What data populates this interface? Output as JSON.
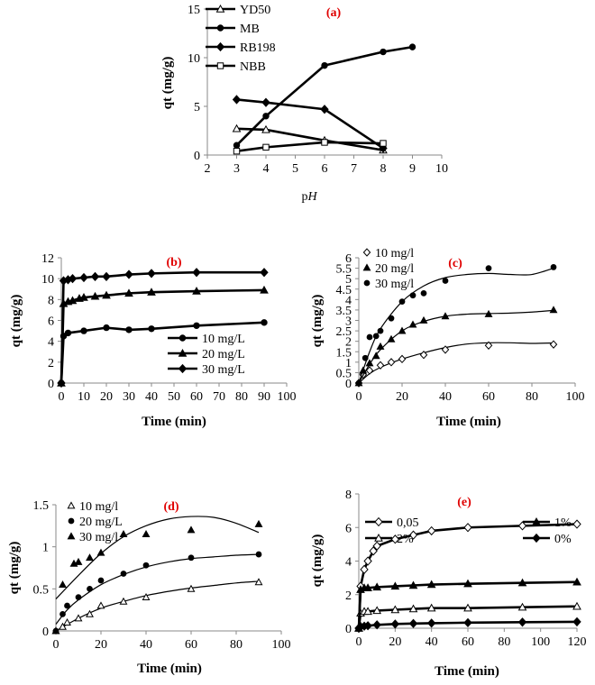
{
  "chart_data": [
    {
      "id": "a",
      "type": "line",
      "title": "(a)",
      "xlabel": "pH",
      "ylabel": "qt  (mg/g)",
      "xlim": [
        2,
        10
      ],
      "ylim": [
        0,
        15
      ],
      "xticks": [
        2,
        3,
        4,
        5,
        6,
        7,
        8,
        9,
        10
      ],
      "yticks": [
        0,
        5,
        10,
        15
      ],
      "legend_position": "top-left",
      "series": [
        {
          "name": "YD50",
          "marker": "triangle-open",
          "line": "thick",
          "x": [
            3,
            4,
            6,
            8
          ],
          "y": [
            2.7,
            2.6,
            1.5,
            0.5
          ]
        },
        {
          "name": "MB",
          "marker": "circle",
          "line": "thick",
          "x": [
            3,
            4,
            6,
            8,
            9
          ],
          "y": [
            1.0,
            4.0,
            9.2,
            10.6,
            11.1
          ]
        },
        {
          "name": "RB198",
          "marker": "diamond",
          "line": "thick",
          "x": [
            3,
            4,
            6,
            8
          ],
          "y": [
            5.7,
            5.4,
            4.7,
            0.7
          ]
        },
        {
          "name": "NBB",
          "marker": "square-open",
          "line": "thick",
          "x": [
            3,
            4,
            6,
            8
          ],
          "y": [
            0.4,
            0.8,
            1.3,
            1.2
          ]
        }
      ]
    },
    {
      "id": "b",
      "type": "line",
      "title": "(b)",
      "xlabel": "Time (min)",
      "ylabel": "qt (mg/g)",
      "xlim": [
        0,
        100
      ],
      "ylim": [
        0,
        12
      ],
      "xticks": [
        0,
        10,
        20,
        30,
        40,
        50,
        60,
        70,
        80,
        90,
        100
      ],
      "yticks": [
        0,
        2,
        4,
        6,
        8,
        10,
        12
      ],
      "legend_position": "bottom-right",
      "series": [
        {
          "name": "10 mg/L",
          "marker": "circle",
          "line": "thick",
          "x": [
            0,
            1,
            3,
            10,
            20,
            30,
            40,
            60,
            90
          ],
          "y": [
            0,
            4.5,
            4.8,
            5.0,
            5.3,
            5.1,
            5.2,
            5.5,
            5.8
          ]
        },
        {
          "name": "20 mg/L",
          "marker": "triangle",
          "line": "thick",
          "x": [
            0,
            1,
            3,
            5,
            8,
            10,
            15,
            20,
            30,
            40,
            60,
            90
          ],
          "y": [
            0,
            7.6,
            7.8,
            7.9,
            8.1,
            8.2,
            8.3,
            8.4,
            8.6,
            8.7,
            8.8,
            8.9
          ]
        },
        {
          "name": "30 mg/L",
          "marker": "diamond",
          "line": "thick",
          "x": [
            0,
            1,
            3,
            5,
            10,
            15,
            20,
            30,
            40,
            60,
            90
          ],
          "y": [
            0,
            9.8,
            9.9,
            10.0,
            10.1,
            10.2,
            10.2,
            10.4,
            10.5,
            10.6,
            10.6
          ]
        }
      ]
    },
    {
      "id": "c",
      "type": "scatter",
      "title": "(c)",
      "xlabel": "Time (min)",
      "ylabel": "qt  (mg/g)",
      "xlim": [
        0,
        100
      ],
      "ylim": [
        0,
        6
      ],
      "xticks": [
        0,
        20,
        40,
        60,
        80,
        100
      ],
      "yticks": [
        0,
        0.5,
        1,
        1.5,
        2,
        2.5,
        3,
        3.5,
        4,
        4.5,
        5,
        5.5,
        6
      ],
      "legend_position": "top-left",
      "series": [
        {
          "name": "10 mg/l",
          "marker": "diamond-open",
          "x": [
            0,
            2,
            5,
            10,
            15,
            20,
            30,
            40,
            60,
            90
          ],
          "y": [
            0,
            0.4,
            0.6,
            0.85,
            1.0,
            1.15,
            1.35,
            1.6,
            1.8,
            1.85
          ],
          "fit_x": [
            0,
            5,
            10,
            20,
            30,
            40,
            50,
            60,
            70,
            80,
            90
          ],
          "fit_y": [
            0,
            0.45,
            0.75,
            1.15,
            1.45,
            1.7,
            1.87,
            1.93,
            1.93,
            1.9,
            1.92
          ]
        },
        {
          "name": "20 mg/l",
          "marker": "triangle",
          "x": [
            0,
            2,
            5,
            8,
            10,
            15,
            20,
            25,
            30,
            40,
            60,
            90
          ],
          "y": [
            0,
            0.6,
            0.95,
            1.3,
            1.75,
            2.1,
            2.5,
            2.8,
            3.0,
            3.2,
            3.3,
            3.5
          ],
          "fit_x": [
            0,
            5,
            10,
            20,
            30,
            40,
            50,
            60,
            70,
            80,
            90
          ],
          "fit_y": [
            0,
            0.9,
            1.6,
            2.5,
            2.95,
            3.2,
            3.3,
            3.33,
            3.35,
            3.4,
            3.48
          ]
        },
        {
          "name": "30 mg/l",
          "marker": "circle",
          "x": [
            0,
            3,
            5,
            8,
            10,
            15,
            20,
            25,
            30,
            40,
            60,
            90
          ],
          "y": [
            0,
            1.2,
            2.2,
            2.25,
            2.5,
            3.1,
            3.9,
            4.2,
            4.3,
            4.9,
            5.5,
            5.55
          ],
          "fit_x": [
            0,
            5,
            10,
            20,
            30,
            40,
            50,
            60,
            70,
            80,
            90
          ],
          "fit_y": [
            0,
            1.5,
            2.6,
            3.9,
            4.65,
            5.05,
            5.2,
            5.25,
            5.2,
            5.2,
            5.5
          ]
        }
      ]
    },
    {
      "id": "d",
      "type": "scatter",
      "title": "(d)",
      "xlabel": "Time (min)",
      "ylabel": "qt  (mg/g)",
      "xlim": [
        0,
        100
      ],
      "ylim": [
        0,
        1.5
      ],
      "xticks": [
        0,
        20,
        40,
        60,
        80,
        100
      ],
      "yticks": [
        0,
        0.5,
        1,
        1.5
      ],
      "legend_position": "top-left",
      "series": [
        {
          "name": "10 mg/l",
          "marker": "triangle-open",
          "x": [
            0,
            3,
            5,
            10,
            15,
            20,
            30,
            40,
            60,
            90
          ],
          "y": [
            0,
            0.05,
            0.1,
            0.15,
            0.2,
            0.3,
            0.35,
            0.4,
            0.5,
            0.58
          ],
          "fit_x": [
            0,
            10,
            20,
            30,
            40,
            50,
            60,
            70,
            80,
            90
          ],
          "fit_y": [
            0,
            0.15,
            0.27,
            0.35,
            0.42,
            0.47,
            0.51,
            0.54,
            0.57,
            0.59
          ]
        },
        {
          "name": "20 mg/L",
          "marker": "circle",
          "x": [
            0,
            3,
            5,
            10,
            15,
            20,
            30,
            40,
            60,
            90
          ],
          "y": [
            0,
            0.2,
            0.3,
            0.4,
            0.5,
            0.6,
            0.68,
            0.78,
            0.87,
            0.91
          ],
          "fit_x": [
            0,
            5,
            10,
            20,
            30,
            40,
            50,
            60,
            70,
            80,
            90
          ],
          "fit_y": [
            0.08,
            0.25,
            0.37,
            0.55,
            0.67,
            0.76,
            0.82,
            0.86,
            0.88,
            0.9,
            0.91
          ]
        },
        {
          "name": "30 mg/l",
          "marker": "triangle",
          "x": [
            0,
            3,
            8,
            10,
            15,
            20,
            30,
            40,
            60,
            90
          ],
          "y": [
            0,
            0.55,
            0.8,
            0.82,
            0.87,
            0.93,
            1.15,
            1.15,
            1.2,
            1.27
          ],
          "fit_x": [
            0,
            10,
            20,
            30,
            40,
            50,
            60,
            70,
            80,
            90
          ],
          "fit_y": [
            0.38,
            0.66,
            0.92,
            1.12,
            1.25,
            1.33,
            1.36,
            1.35,
            1.28,
            1.17
          ]
        }
      ]
    },
    {
      "id": "e",
      "type": "line",
      "title": "(e)",
      "xlabel": "Time (min)",
      "ylabel": "qt  (mg/g)",
      "xlim": [
        0,
        120
      ],
      "ylim": [
        0,
        8
      ],
      "xticks": [
        0,
        20,
        40,
        60,
        80,
        100,
        120
      ],
      "yticks": [
        0,
        2,
        4,
        6,
        8
      ],
      "legend_position": "center-right",
      "legend_order": [
        0,
        2,
        1,
        3
      ],
      "series": [
        {
          "name": "0,05",
          "marker": "diamond-open",
          "line": "thick",
          "x": [
            0,
            1,
            3,
            5,
            8,
            10,
            20,
            30,
            40,
            60,
            90,
            120
          ],
          "y": [
            0,
            2.5,
            3.5,
            4.0,
            4.6,
            4.9,
            5.3,
            5.55,
            5.8,
            6.0,
            6.1,
            6.2
          ]
        },
        {
          "name": "2%",
          "marker": "triangle-open",
          "line": "thick",
          "x": [
            0,
            1,
            3,
            5,
            10,
            20,
            30,
            40,
            60,
            90,
            120
          ],
          "y": [
            0,
            0.9,
            1.0,
            1.0,
            1.05,
            1.1,
            1.15,
            1.2,
            1.2,
            1.25,
            1.3
          ]
        },
        {
          "name": "1%",
          "marker": "triangle",
          "line": "thick",
          "x": [
            0,
            1,
            3,
            5,
            10,
            20,
            30,
            40,
            60,
            90,
            120
          ],
          "y": [
            0,
            2.3,
            2.4,
            2.4,
            2.45,
            2.5,
            2.55,
            2.6,
            2.65,
            2.7,
            2.75
          ]
        },
        {
          "name": "0%",
          "marker": "diamond",
          "line": "thick",
          "x": [
            0,
            1,
            3,
            5,
            10,
            20,
            30,
            40,
            60,
            90,
            120
          ],
          "y": [
            0,
            0.1,
            0.12,
            0.15,
            0.2,
            0.25,
            0.28,
            0.3,
            0.33,
            0.36,
            0.38
          ]
        }
      ]
    }
  ]
}
